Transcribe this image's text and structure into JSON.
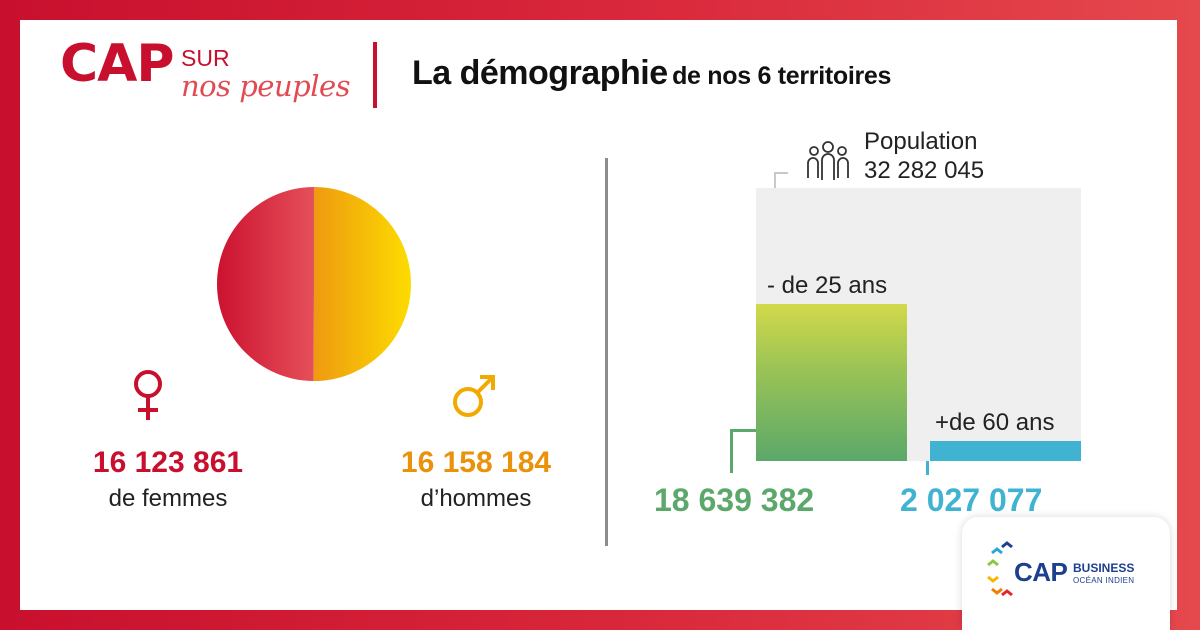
{
  "header": {
    "logo_cap": "CAP",
    "logo_sur": "SUR",
    "logo_peuples": "nos peuples",
    "title_main": "La démographie",
    "title_sub": "de nos 6 territoires"
  },
  "colors": {
    "brand_red": "#c8102e",
    "women": "#c8102e",
    "men": "#e9920a",
    "young": "#5ba86a",
    "old": "#40b3d3",
    "population_bg": "#efefef"
  },
  "gender": {
    "women_value": "16 123 861",
    "women_label": "de femmes",
    "men_value": "16 158 184",
    "men_label": "d’hommes",
    "women_icon": "female-symbol-icon",
    "men_icon": "male-symbol-icon"
  },
  "population": {
    "label": "Population",
    "value": "32 282 045",
    "icon": "people-group-icon",
    "young_label": "- de 25 ans",
    "young_value": "18 639 382",
    "old_label": "+de 60 ans",
    "old_value": "2 027 077"
  },
  "badge": {
    "cap": "CAP",
    "business": "BUSINESS",
    "ocean": "OCÉAN INDIEN"
  },
  "chart_data": [
    {
      "type": "pie",
      "title": "",
      "categories": [
        "Femmes",
        "Hommes"
      ],
      "values": [
        16123861,
        16158184
      ],
      "colors": [
        "#c8102e",
        "#e9920a"
      ]
    },
    {
      "type": "bar",
      "title": "Population",
      "categories": [
        "Population",
        "- de 25 ans",
        "+de 60 ans"
      ],
      "values": [
        32282045,
        18639382,
        2027077
      ],
      "ylim": [
        0,
        32282045
      ]
    }
  ]
}
